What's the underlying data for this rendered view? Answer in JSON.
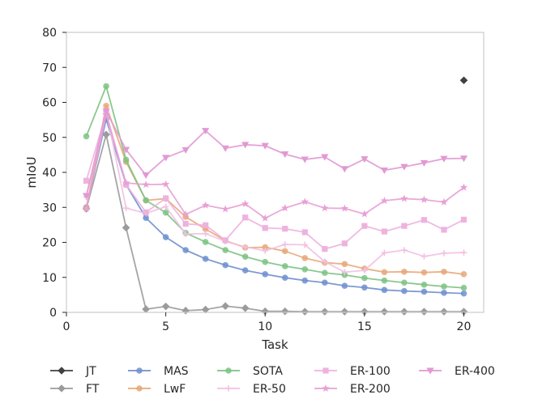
{
  "chart_data": {
    "type": "line",
    "title": "",
    "xlabel": "Task",
    "ylabel": "mIoU",
    "xlim": [
      0,
      21
    ],
    "ylim": [
      0,
      80
    ],
    "xticks": [
      0,
      5,
      10,
      15,
      20
    ],
    "yticks": [
      0,
      10,
      20,
      30,
      40,
      50,
      60,
      70,
      80
    ],
    "grid": false,
    "legend_position": "bottom",
    "series": [
      {
        "name": "JT",
        "color": "#404040",
        "marker": "diamond",
        "x": [
          20
        ],
        "y": [
          66.3
        ]
      },
      {
        "name": "FT",
        "color": "#9b9b9b",
        "marker": "diamond",
        "x": [
          1,
          2,
          3,
          4,
          5,
          6,
          7,
          8,
          9,
          10,
          11,
          12,
          13,
          14,
          15,
          16,
          17,
          18,
          19,
          20
        ],
        "y": [
          29.6,
          50.8,
          24.2,
          0.9,
          1.7,
          0.5,
          0.8,
          1.8,
          1.2,
          0.3,
          0.3,
          0.2,
          0.2,
          0.2,
          0.2,
          0.2,
          0.2,
          0.2,
          0.2,
          0.2
        ]
      },
      {
        "name": "MAS",
        "color": "#6f8fcf",
        "marker": "circle",
        "x": [
          1,
          2,
          3,
          4,
          5,
          6,
          7,
          8,
          9,
          10,
          11,
          12,
          13,
          14,
          15,
          16,
          17,
          18,
          19,
          20
        ],
        "y": [
          30.0,
          55.2,
          36.5,
          27.0,
          21.5,
          17.8,
          15.3,
          13.5,
          12.0,
          10.9,
          9.9,
          9.1,
          8.5,
          7.6,
          7.1,
          6.4,
          6.1,
          5.9,
          5.6,
          5.4
        ]
      },
      {
        "name": "LwF",
        "color": "#e8a878",
        "marker": "circle",
        "x": [
          1,
          2,
          3,
          4,
          5,
          6,
          7,
          8,
          9,
          10,
          11,
          12,
          13,
          14,
          15,
          16,
          17,
          18,
          19,
          20
        ],
        "y": [
          29.8,
          59.0,
          43.0,
          32.0,
          32.5,
          27.3,
          23.8,
          20.5,
          18.5,
          18.6,
          17.5,
          15.5,
          14.2,
          13.8,
          12.5,
          11.5,
          11.6,
          11.4,
          11.6,
          10.9
        ]
      },
      {
        "name": "SOTA",
        "color": "#7cc382",
        "marker": "circle",
        "x": [
          1,
          2,
          3,
          4,
          5,
          6,
          7,
          8,
          9,
          10,
          11,
          12,
          13,
          14,
          15,
          16,
          17,
          18,
          19,
          20
        ],
        "y": [
          50.3,
          64.6,
          43.6,
          32.0,
          28.5,
          22.7,
          20.1,
          17.8,
          15.9,
          14.4,
          13.2,
          12.3,
          11.3,
          10.7,
          9.8,
          9.1,
          8.5,
          7.9,
          7.4,
          7.0
        ]
      },
      {
        "name": "ER-50",
        "color": "#f2c0e3",
        "marker": "plus",
        "x": [
          1,
          2,
          3,
          4,
          5,
          6,
          7,
          8,
          9,
          10,
          11,
          12,
          13,
          14,
          15,
          16,
          17,
          18,
          19,
          20
        ],
        "y": [
          33.0,
          57.5,
          29.8,
          28.3,
          30.2,
          22.4,
          22.5,
          20.3,
          18.7,
          17.6,
          19.4,
          19.3,
          14.5,
          11.5,
          12.0,
          17.0,
          17.8,
          16.0,
          16.9,
          17.1
        ]
      },
      {
        "name": "ER-100",
        "color": "#eeb2de",
        "marker": "square",
        "x": [
          1,
          2,
          3,
          4,
          5,
          6,
          7,
          8,
          9,
          10,
          11,
          12,
          13,
          14,
          15,
          16,
          17,
          18,
          19,
          20
        ],
        "y": [
          37.6,
          57.0,
          36.5,
          28.6,
          32.6,
          25.3,
          24.9,
          20.6,
          27.1,
          24.1,
          23.9,
          22.9,
          18.1,
          19.7,
          24.7,
          23.1,
          24.7,
          26.4,
          23.6,
          26.5
        ]
      },
      {
        "name": "ER-200",
        "color": "#e8a0d6",
        "marker": "star",
        "x": [
          1,
          2,
          3,
          4,
          5,
          6,
          7,
          8,
          9,
          10,
          11,
          12,
          13,
          14,
          15,
          16,
          17,
          18,
          19,
          20
        ],
        "y": [
          29.6,
          56.5,
          37.0,
          36.5,
          36.6,
          28.0,
          30.6,
          29.5,
          31.0,
          26.9,
          29.8,
          31.6,
          29.8,
          29.7,
          28.1,
          31.9,
          32.5,
          32.2,
          31.5,
          35.7
        ]
      },
      {
        "name": "ER-400",
        "color": "#e199d3",
        "marker": "triangle-down",
        "x": [
          1,
          2,
          3,
          4,
          5,
          6,
          7,
          8,
          9,
          10,
          11,
          12,
          13,
          14,
          15,
          16,
          17,
          18,
          19,
          20
        ],
        "y": [
          33.3,
          57.5,
          46.5,
          39.2,
          44.2,
          46.4,
          51.9,
          46.9,
          47.9,
          47.6,
          45.2,
          43.7,
          44.4,
          41.0,
          43.8,
          40.6,
          41.6,
          42.7,
          43.9,
          44.0
        ]
      }
    ]
  }
}
